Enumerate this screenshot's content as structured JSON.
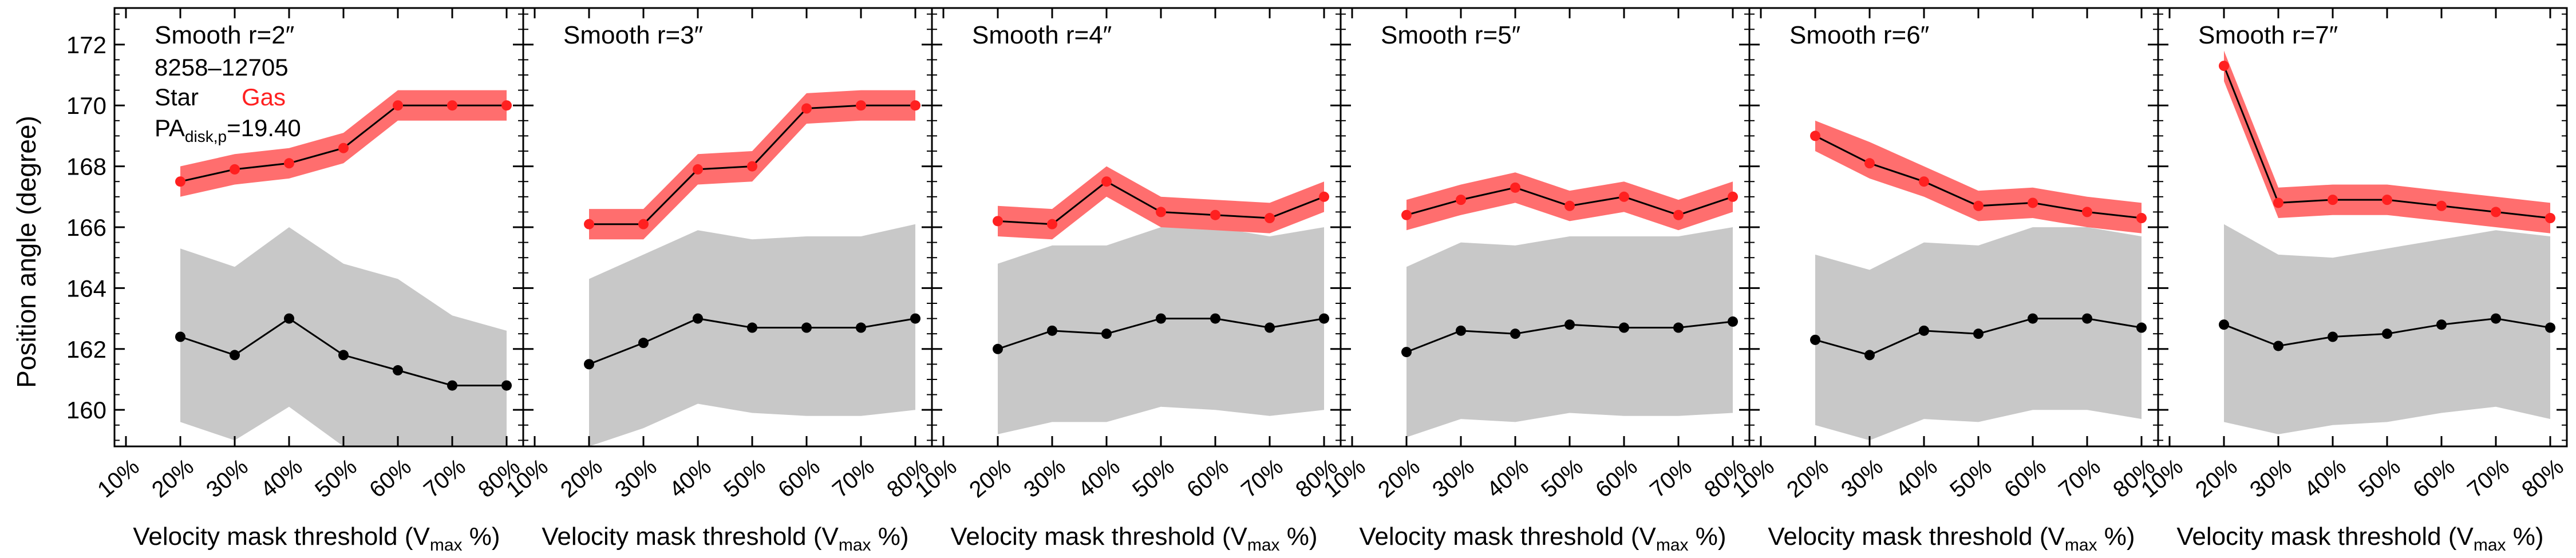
{
  "figure": {
    "ylabel": "Position angle (degree)",
    "xlabel_prefix": "Velocity mask threshold (V",
    "xlabel_sub": "max",
    "xlabel_suffix": " %)",
    "legend": {
      "galaxy_id": "8258–12705",
      "star_label": "Star",
      "gas_label": "Gas",
      "pa_prefix": "PA",
      "pa_sub": "disk,p",
      "pa_value": "=19.40"
    },
    "colors": {
      "star": "#000000",
      "star_band": "#c8c8c8",
      "gas": "#ff2020",
      "gas_band": "#ff6e6e"
    }
  },
  "chart_data": [
    {
      "type": "line",
      "title": "Smooth r=2″",
      "categories": [
        "10%",
        "20%",
        "30%",
        "40%",
        "50%",
        "60%",
        "70%",
        "80%"
      ],
      "ylim": [
        158.8,
        173.2
      ],
      "yticks": [
        160,
        162,
        164,
        166,
        168,
        170,
        172
      ],
      "series": [
        {
          "name": "Star",
          "x": [
            20,
            30,
            40,
            50,
            60,
            70,
            80
          ],
          "values": [
            162.4,
            161.8,
            163.0,
            161.8,
            161.3,
            160.8,
            160.8
          ],
          "band_low": [
            159.6,
            159.0,
            160.1,
            158.8,
            158.8,
            158.8,
            158.8
          ],
          "band_high": [
            165.3,
            164.7,
            166.0,
            164.8,
            164.3,
            163.1,
            162.6
          ]
        },
        {
          "name": "Gas",
          "x": [
            20,
            30,
            40,
            50,
            60,
            70,
            80
          ],
          "values": [
            167.5,
            167.9,
            168.1,
            168.6,
            170.0,
            170.0,
            170.0
          ],
          "band_low": [
            167.0,
            167.4,
            167.6,
            168.1,
            169.5,
            169.5,
            169.5
          ],
          "band_high": [
            168.0,
            168.4,
            168.6,
            169.1,
            170.5,
            170.5,
            170.5
          ]
        }
      ]
    },
    {
      "type": "line",
      "title": "Smooth r=3″",
      "categories": [
        "10%",
        "20%",
        "30%",
        "40%",
        "50%",
        "60%",
        "70%",
        "80%"
      ],
      "ylim": [
        158.8,
        173.2
      ],
      "yticks": [
        160,
        162,
        164,
        166,
        168,
        170,
        172
      ],
      "series": [
        {
          "name": "Star",
          "x": [
            20,
            30,
            40,
            50,
            60,
            70,
            80
          ],
          "values": [
            161.5,
            162.2,
            163.0,
            162.7,
            162.7,
            162.7,
            163.0
          ],
          "band_low": [
            158.8,
            159.4,
            160.2,
            159.9,
            159.8,
            159.8,
            160.0
          ],
          "band_high": [
            164.3,
            165.1,
            165.9,
            165.6,
            165.7,
            165.7,
            166.1
          ]
        },
        {
          "name": "Gas",
          "x": [
            20,
            30,
            40,
            50,
            60,
            70,
            80
          ],
          "values": [
            166.1,
            166.1,
            167.9,
            168.0,
            169.9,
            170.0,
            170.0
          ],
          "band_low": [
            165.6,
            165.6,
            167.4,
            167.5,
            169.4,
            169.5,
            169.5
          ],
          "band_high": [
            166.6,
            166.6,
            168.4,
            168.5,
            170.4,
            170.5,
            170.5
          ]
        }
      ]
    },
    {
      "type": "line",
      "title": "Smooth r=4″",
      "categories": [
        "10%",
        "20%",
        "30%",
        "40%",
        "50%",
        "60%",
        "70%",
        "80%"
      ],
      "ylim": [
        158.8,
        173.2
      ],
      "yticks": [
        160,
        162,
        164,
        166,
        168,
        170,
        172
      ],
      "series": [
        {
          "name": "Star",
          "x": [
            20,
            30,
            40,
            50,
            60,
            70,
            80
          ],
          "values": [
            162.0,
            162.6,
            162.5,
            163.0,
            163.0,
            162.7,
            163.0
          ],
          "band_low": [
            159.2,
            159.6,
            159.6,
            160.1,
            160.0,
            159.8,
            160.0
          ],
          "band_high": [
            164.8,
            165.4,
            165.4,
            166.0,
            166.0,
            165.7,
            166.0
          ]
        },
        {
          "name": "Gas",
          "x": [
            20,
            30,
            40,
            50,
            60,
            70,
            80
          ],
          "values": [
            166.2,
            166.1,
            167.5,
            166.5,
            166.4,
            166.3,
            167.0
          ],
          "band_low": [
            165.7,
            165.6,
            167.0,
            166.0,
            165.9,
            165.8,
            166.5
          ],
          "band_high": [
            166.7,
            166.6,
            168.0,
            167.0,
            166.9,
            166.8,
            167.5
          ]
        }
      ]
    },
    {
      "type": "line",
      "title": "Smooth r=5″",
      "categories": [
        "10%",
        "20%",
        "30%",
        "40%",
        "50%",
        "60%",
        "70%",
        "80%"
      ],
      "ylim": [
        158.8,
        173.2
      ],
      "yticks": [
        160,
        162,
        164,
        166,
        168,
        170,
        172
      ],
      "series": [
        {
          "name": "Star",
          "x": [
            20,
            30,
            40,
            50,
            60,
            70,
            80
          ],
          "values": [
            161.9,
            162.6,
            162.5,
            162.8,
            162.7,
            162.7,
            162.9
          ],
          "band_low": [
            159.1,
            159.7,
            159.6,
            159.9,
            159.8,
            159.8,
            159.9
          ],
          "band_high": [
            164.7,
            165.5,
            165.4,
            165.7,
            165.7,
            165.7,
            166.0
          ]
        },
        {
          "name": "Gas",
          "x": [
            20,
            30,
            40,
            50,
            60,
            70,
            80
          ],
          "values": [
            166.4,
            166.9,
            167.3,
            166.7,
            167.0,
            166.4,
            167.0
          ],
          "band_low": [
            165.9,
            166.4,
            166.8,
            166.2,
            166.5,
            165.9,
            166.5
          ],
          "band_high": [
            166.9,
            167.4,
            167.8,
            167.2,
            167.5,
            166.9,
            167.5
          ]
        }
      ]
    },
    {
      "type": "line",
      "title": "Smooth r=6″",
      "categories": [
        "10%",
        "20%",
        "30%",
        "40%",
        "50%",
        "60%",
        "70%",
        "80%"
      ],
      "ylim": [
        158.8,
        173.2
      ],
      "yticks": [
        160,
        162,
        164,
        166,
        168,
        170,
        172
      ],
      "series": [
        {
          "name": "Star",
          "x": [
            20,
            30,
            40,
            50,
            60,
            70,
            80
          ],
          "values": [
            162.3,
            161.8,
            162.6,
            162.5,
            163.0,
            163.0,
            162.7
          ],
          "band_low": [
            159.5,
            159.0,
            159.7,
            159.6,
            160.0,
            160.0,
            159.7
          ],
          "band_high": [
            165.1,
            164.6,
            165.5,
            165.4,
            166.0,
            166.0,
            165.7
          ]
        },
        {
          "name": "Gas",
          "x": [
            20,
            30,
            40,
            50,
            60,
            70,
            80
          ],
          "values": [
            169.0,
            168.1,
            167.5,
            166.7,
            166.8,
            166.5,
            166.3
          ],
          "band_low": [
            168.5,
            167.6,
            167.0,
            166.2,
            166.3,
            166.0,
            165.8
          ],
          "band_high": [
            169.5,
            168.8,
            168.0,
            167.2,
            167.3,
            167.0,
            166.8
          ]
        }
      ]
    },
    {
      "type": "line",
      "title": "Smooth r=7″",
      "categories": [
        "10%",
        "20%",
        "30%",
        "40%",
        "50%",
        "60%",
        "70%",
        "80%"
      ],
      "ylim": [
        158.8,
        173.2
      ],
      "yticks": [
        160,
        162,
        164,
        166,
        168,
        170,
        172
      ],
      "series": [
        {
          "name": "Star",
          "x": [
            20,
            30,
            40,
            50,
            60,
            70,
            80
          ],
          "values": [
            162.8,
            162.1,
            162.4,
            162.5,
            162.8,
            163.0,
            162.7
          ],
          "band_low": [
            159.6,
            159.2,
            159.5,
            159.6,
            159.9,
            160.1,
            159.7
          ],
          "band_high": [
            166.1,
            165.1,
            165.0,
            165.3,
            165.6,
            165.9,
            165.7
          ]
        },
        {
          "name": "Gas",
          "x": [
            20,
            30,
            40,
            50,
            60,
            70,
            80
          ],
          "values": [
            171.3,
            166.8,
            166.9,
            166.9,
            166.7,
            166.5,
            166.3
          ],
          "band_low": [
            170.8,
            166.3,
            166.4,
            166.4,
            166.2,
            166.0,
            165.8
          ],
          "band_high": [
            171.8,
            167.3,
            167.4,
            167.4,
            167.2,
            167.0,
            166.8
          ]
        }
      ]
    }
  ]
}
